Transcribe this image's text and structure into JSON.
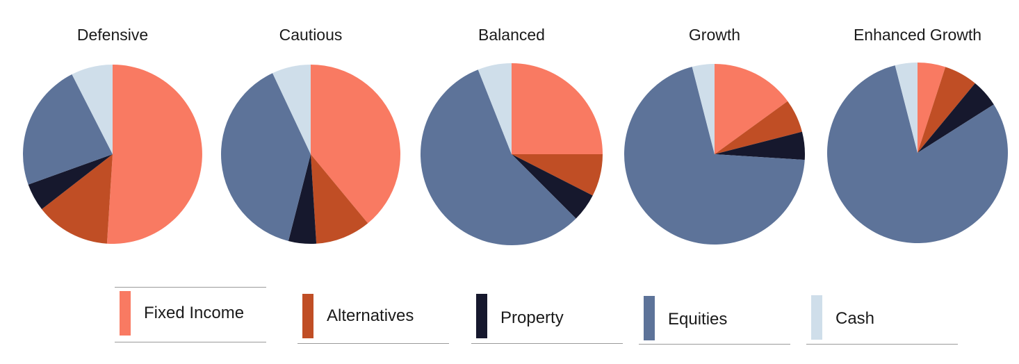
{
  "chart_data": {
    "type": "pie",
    "categories": [
      "Fixed Income",
      "Alternatives",
      "Property",
      "Equities",
      "Cash"
    ],
    "colors": [
      "#f97a62",
      "#c04e25",
      "#16182d",
      "#5d7399",
      "#cfdeea"
    ],
    "charts": [
      {
        "title": "Defensive",
        "values": [
          51,
          13.5,
          5,
          23,
          7.5
        ]
      },
      {
        "title": "Cautious",
        "values": [
          39,
          10,
          5,
          39,
          7
        ]
      },
      {
        "title": "Balanced",
        "values": [
          25,
          7.5,
          5,
          56.5,
          6
        ]
      },
      {
        "title": "Growth",
        "values": [
          15,
          6,
          5,
          70,
          4
        ]
      },
      {
        "title": "Enhanced Growth",
        "values": [
          5,
          6,
          5,
          80,
          4
        ]
      }
    ],
    "legend_position": "bottom"
  },
  "legend": {
    "items": [
      {
        "label": "Fixed Income",
        "color": "#f97a62"
      },
      {
        "label": "Alternatives",
        "color": "#c04e25"
      },
      {
        "label": "Property",
        "color": "#16182d"
      },
      {
        "label": "Equities",
        "color": "#5d7399"
      },
      {
        "label": "Cash",
        "color": "#cfdeea"
      }
    ]
  }
}
